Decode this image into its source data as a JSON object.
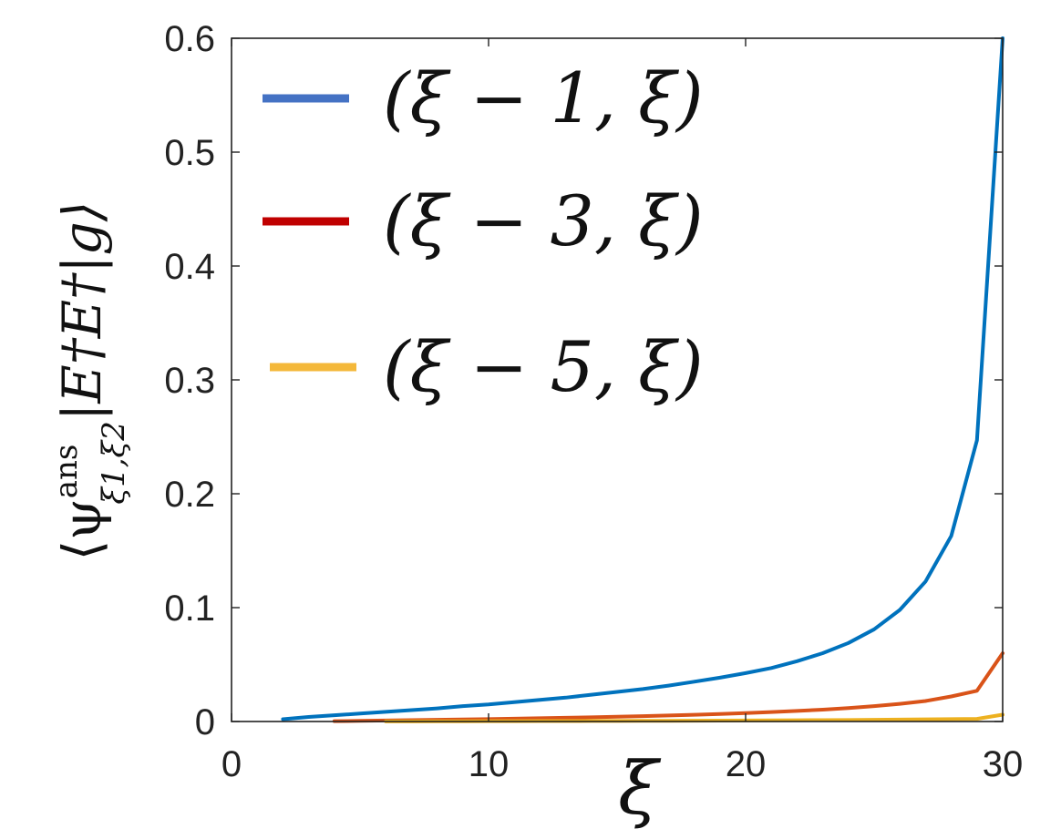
{
  "chart_data": {
    "type": "line",
    "xlabel": "ξ",
    "ylabel": "⟨ψ",
    "ylabel_sup": "ans",
    "ylabel_sub": "ξ1,ξ2",
    "ylabel_rest": "|E†E†|g⟩",
    "xlim": [
      0,
      30
    ],
    "ylim": [
      0,
      0.6
    ],
    "xticks": [
      0,
      10,
      20,
      30
    ],
    "xtick_labels": [
      "0",
      "10",
      "20",
      "30"
    ],
    "yticks": [
      0,
      0.1,
      0.2,
      0.3,
      0.4,
      0.5,
      0.6
    ],
    "ytick_labels": [
      "0",
      "0.1",
      "0.2",
      "0.3",
      "0.4",
      "0.5",
      "0.6"
    ],
    "grid": false,
    "legend_position": "top-left",
    "series": [
      {
        "name": "(ξ − 1, ξ)",
        "color": "#0072BD",
        "legend_color": "#4472C4",
        "x": [
          2,
          3,
          4,
          5,
          6,
          7,
          8,
          9,
          10,
          11,
          12,
          13,
          14,
          15,
          16,
          17,
          18,
          19,
          20,
          21,
          22,
          23,
          24,
          25,
          26,
          27,
          28,
          29,
          30
        ],
        "y": [
          0.002,
          0.004,
          0.0055,
          0.007,
          0.0085,
          0.01,
          0.0115,
          0.0135,
          0.015,
          0.017,
          0.019,
          0.021,
          0.0235,
          0.026,
          0.0285,
          0.0315,
          0.035,
          0.0385,
          0.0425,
          0.047,
          0.053,
          0.06,
          0.069,
          0.081,
          0.098,
          0.123,
          0.163,
          0.247,
          0.6
        ]
      },
      {
        "name": "(ξ − 3, ξ)",
        "color": "#D95319",
        "legend_color": "#C00000",
        "x": [
          4,
          5,
          6,
          7,
          8,
          9,
          10,
          11,
          12,
          13,
          14,
          15,
          16,
          17,
          18,
          19,
          20,
          21,
          22,
          23,
          24,
          25,
          26,
          27,
          28,
          29,
          30
        ],
        "y": [
          0.0003,
          0.0006,
          0.0009,
          0.0012,
          0.0015,
          0.0018,
          0.0021,
          0.0025,
          0.0029,
          0.0033,
          0.0037,
          0.0042,
          0.0047,
          0.0053,
          0.0059,
          0.0066,
          0.0074,
          0.0083,
          0.0093,
          0.0104,
          0.0118,
          0.0135,
          0.0155,
          0.018,
          0.022,
          0.027,
          0.06
        ]
      },
      {
        "name": "(ξ − 5, ξ)",
        "color": "#EDB120",
        "legend_color": "#F4B83A",
        "x": [
          6,
          7,
          8,
          9,
          10,
          11,
          12,
          13,
          14,
          15,
          16,
          17,
          18,
          19,
          20,
          21,
          22,
          23,
          24,
          25,
          26,
          27,
          28,
          29,
          30
        ],
        "y": [
          0.0001,
          0.0001,
          0.0002,
          0.0002,
          0.0003,
          0.0003,
          0.0004,
          0.0004,
          0.0005,
          0.0005,
          0.0006,
          0.0006,
          0.0007,
          0.0008,
          0.0009,
          0.001,
          0.0011,
          0.0012,
          0.0013,
          0.0015,
          0.0017,
          0.0019,
          0.0021,
          0.0023,
          0.006
        ]
      }
    ]
  }
}
